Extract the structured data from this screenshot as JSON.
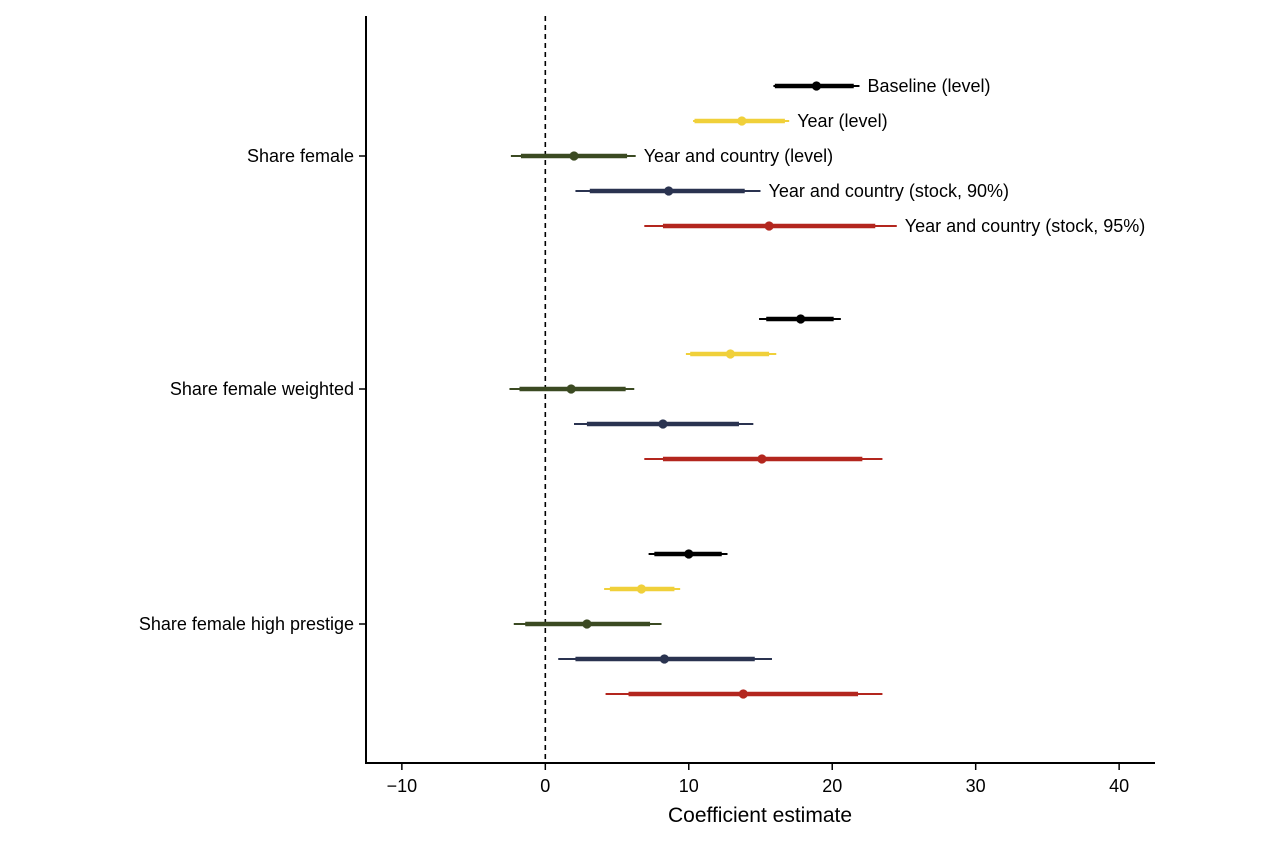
{
  "chart_data": {
    "type": "coefficient-plot",
    "xlabel": "Coefficient estimate",
    "xlim": [
      -12.5,
      42.5
    ],
    "xticks": [
      -10,
      0,
      10,
      20,
      30,
      40
    ],
    "xtick_labels": [
      "−10",
      "0",
      "10",
      "20",
      "30",
      "40"
    ],
    "reference_line": 0,
    "grid": false,
    "categories": [
      "Share female",
      "Share female weighted",
      "Share female high prestige"
    ],
    "series": [
      {
        "name": "Baseline (level)",
        "color": "#000000"
      },
      {
        "name": "Year (level)",
        "color": "#f0d03a"
      },
      {
        "name": "Year and country (level)",
        "color": "#3b4a22"
      },
      {
        "name": "Year and country (stock, 90%)",
        "color": "#2a3350"
      },
      {
        "name": "Year and country (stock, 95%)",
        "color": "#b3261e"
      }
    ],
    "estimates": [
      [
        {
          "est": 18.9,
          "ci90": [
            16.0,
            21.5
          ],
          "ci95": [
            15.9,
            21.9
          ]
        },
        {
          "est": 13.7,
          "ci90": [
            10.4,
            16.7
          ],
          "ci95": [
            10.3,
            17.0
          ]
        },
        {
          "est": 2.0,
          "ci90": [
            -1.7,
            5.7
          ],
          "ci95": [
            -2.4,
            6.3
          ]
        },
        {
          "est": 8.6,
          "ci90": [
            3.1,
            13.9
          ],
          "ci95": [
            2.1,
            15.0
          ]
        },
        {
          "est": 15.6,
          "ci90": [
            8.2,
            23.0
          ],
          "ci95": [
            6.9,
            24.5
          ]
        }
      ],
      [
        {
          "est": 17.8,
          "ci90": [
            15.4,
            20.1
          ],
          "ci95": [
            14.9,
            20.6
          ]
        },
        {
          "est": 12.9,
          "ci90": [
            10.1,
            15.6
          ],
          "ci95": [
            9.8,
            16.1
          ]
        },
        {
          "est": 1.8,
          "ci90": [
            -1.8,
            5.6
          ],
          "ci95": [
            -2.5,
            6.2
          ]
        },
        {
          "est": 8.2,
          "ci90": [
            2.9,
            13.5
          ],
          "ci95": [
            2.0,
            14.5
          ]
        },
        {
          "est": 15.1,
          "ci90": [
            8.2,
            22.1
          ],
          "ci95": [
            6.9,
            23.5
          ]
        }
      ],
      [
        {
          "est": 10.0,
          "ci90": [
            7.6,
            12.3
          ],
          "ci95": [
            7.2,
            12.7
          ]
        },
        {
          "est": 6.7,
          "ci90": [
            4.5,
            9.0
          ],
          "ci95": [
            4.1,
            9.4
          ]
        },
        {
          "est": 2.9,
          "ci90": [
            -1.4,
            7.3
          ],
          "ci95": [
            -2.2,
            8.1
          ]
        },
        {
          "est": 8.3,
          "ci90": [
            2.1,
            14.6
          ],
          "ci95": [
            0.9,
            15.8
          ]
        },
        {
          "est": 13.8,
          "ci90": [
            5.8,
            21.8
          ],
          "ci95": [
            4.2,
            23.5
          ]
        }
      ]
    ],
    "series_labels_shown_for_category": 0
  }
}
